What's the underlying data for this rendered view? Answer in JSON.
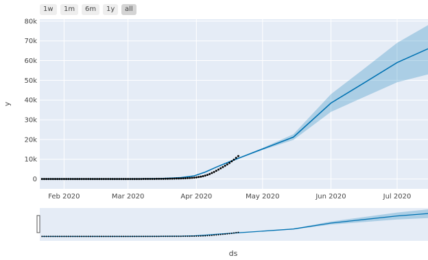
{
  "range_selector": {
    "buttons": [
      {
        "label": "1w",
        "active": false
      },
      {
        "label": "1m",
        "active": false
      },
      {
        "label": "6m",
        "active": false
      },
      {
        "label": "1y",
        "active": false
      },
      {
        "label": "all",
        "active": true
      }
    ]
  },
  "colors": {
    "plot_bg": "#e5ecf6",
    "grid": "#ffffff",
    "forecast_line": "#0072b2",
    "uncertainty_band": "#0072b2",
    "actual_points": "#000000"
  },
  "chart_data": {
    "type": "line",
    "xlabel": "ds",
    "ylabel": "y",
    "x_range": [
      "2020-01-21",
      "2020-07-15"
    ],
    "ylim": [
      -5000,
      81000
    ],
    "grid": true,
    "y_ticks": [
      {
        "value": 0,
        "label": "0"
      },
      {
        "value": 10000,
        "label": "10k"
      },
      {
        "value": 20000,
        "label": "20k"
      },
      {
        "value": 30000,
        "label": "30k"
      },
      {
        "value": 40000,
        "label": "40k"
      },
      {
        "value": 50000,
        "label": "50k"
      },
      {
        "value": 60000,
        "label": "60k"
      },
      {
        "value": 70000,
        "label": "70k"
      },
      {
        "value": 80000,
        "label": "80k"
      }
    ],
    "x_ticks": [
      {
        "date": "2020-02-01",
        "label": "Feb 2020"
      },
      {
        "date": "2020-03-01",
        "label": "Mar 2020"
      },
      {
        "date": "2020-04-01",
        "label": "Apr 2020"
      },
      {
        "date": "2020-05-01",
        "label": "May 2020"
      },
      {
        "date": "2020-06-01",
        "label": "Jun 2020"
      },
      {
        "date": "2020-07-01",
        "label": "Jul 2020"
      }
    ],
    "actual": {
      "start_date": "2020-01-22",
      "values": [
        0,
        0,
        0,
        0,
        0,
        0,
        0,
        0,
        0,
        0,
        0,
        0,
        0,
        0,
        0,
        0,
        0,
        0,
        0,
        0,
        0,
        0,
        0,
        0,
        0,
        0,
        0,
        0,
        0,
        0,
        0,
        0,
        0,
        0,
        0,
        0,
        0,
        0,
        0,
        0,
        0,
        0,
        0,
        0,
        0,
        5,
        10,
        15,
        20,
        25,
        30,
        40,
        50,
        60,
        75,
        90,
        110,
        130,
        150,
        175,
        200,
        230,
        260,
        300,
        340,
        390,
        450,
        520,
        600,
        700,
        820,
        970,
        1150,
        1400,
        1700,
        2050,
        2500,
        3000,
        3550,
        4150,
        4750,
        5400,
        6050,
        6700,
        7400,
        8150,
        8950,
        9800,
        10700,
        11600
      ]
    },
    "forecast": {
      "points": [
        {
          "date": "2020-01-22",
          "yhat": 0,
          "lower": 0,
          "upper": 0
        },
        {
          "date": "2020-03-01",
          "yhat": 0,
          "lower": 0,
          "upper": 0
        },
        {
          "date": "2020-03-15",
          "yhat": 150,
          "lower": 100,
          "upper": 200
        },
        {
          "date": "2020-03-25",
          "yhat": 700,
          "lower": 600,
          "upper": 800
        },
        {
          "date": "2020-03-31",
          "yhat": 1600,
          "lower": 1500,
          "upper": 1700
        },
        {
          "date": "2020-04-05",
          "yhat": 3500,
          "lower": 3400,
          "upper": 3600
        },
        {
          "date": "2020-04-10",
          "yhat": 6000,
          "lower": 5900,
          "upper": 6100
        },
        {
          "date": "2020-04-15",
          "yhat": 8300,
          "lower": 8200,
          "upper": 8400
        },
        {
          "date": "2020-05-01",
          "yhat": 15200,
          "lower": 14700,
          "upper": 15700
        },
        {
          "date": "2020-05-15",
          "yhat": 21200,
          "lower": 19800,
          "upper": 22700
        },
        {
          "date": "2020-06-01",
          "yhat": 38500,
          "lower": 34000,
          "upper": 43000
        },
        {
          "date": "2020-06-15",
          "yhat": 48000,
          "lower": 41000,
          "upper": 55000
        },
        {
          "date": "2020-07-01",
          "yhat": 59000,
          "lower": 49000,
          "upper": 69000
        },
        {
          "date": "2020-07-15",
          "yhat": 66000,
          "lower": 53000,
          "upper": 78000
        }
      ]
    }
  }
}
